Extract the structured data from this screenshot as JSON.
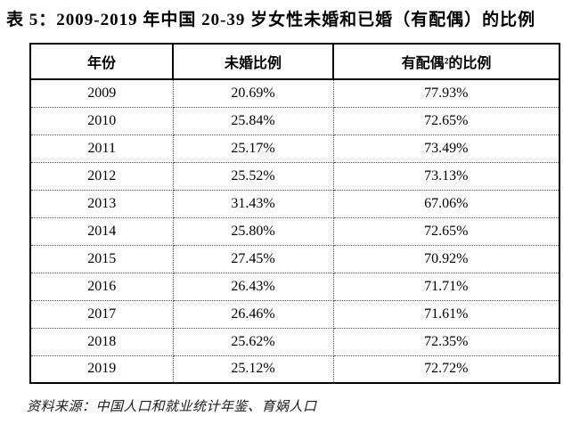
{
  "title": "表 5：2009-2019 年中国 20-39 岁女性未婚和已婚（有配偶）的比例",
  "source_note": "资料来源：中国人口和就业统计年鉴、育娲人口",
  "colors": {
    "background": "#ffffff",
    "text": "#000000",
    "border_solid": "#000000",
    "border_dotted": "#555555"
  },
  "chart_data": {
    "type": "table",
    "title": "表 5：2009-2019 年中国 20-39 岁女性未婚和已婚（有配偶）的比例",
    "columns": [
      "年份",
      "未婚比例",
      "有配偶²的比例"
    ],
    "rows": [
      [
        "2009",
        "20.69%",
        "77.93%"
      ],
      [
        "2010",
        "25.84%",
        "72.65%"
      ],
      [
        "2011",
        "25.17%",
        "73.49%"
      ],
      [
        "2012",
        "25.52%",
        "73.13%"
      ],
      [
        "2013",
        "31.43%",
        "67.06%"
      ],
      [
        "2014",
        "25.80%",
        "72.65%"
      ],
      [
        "2015",
        "27.45%",
        "70.92%"
      ],
      [
        "2016",
        "26.43%",
        "71.71%"
      ],
      [
        "2017",
        "26.46%",
        "71.61%"
      ],
      [
        "2018",
        "25.62%",
        "72.35%"
      ],
      [
        "2019",
        "25.12%",
        "72.72%"
      ]
    ],
    "categories": [
      "2009",
      "2010",
      "2011",
      "2012",
      "2013",
      "2014",
      "2015",
      "2016",
      "2017",
      "2018",
      "2019"
    ],
    "series": [
      {
        "name": "未婚比例",
        "values": [
          20.69,
          25.84,
          25.17,
          25.52,
          31.43,
          25.8,
          27.45,
          26.43,
          26.46,
          25.62,
          25.12
        ]
      },
      {
        "name": "有配偶的比例",
        "values": [
          77.93,
          72.65,
          73.49,
          73.13,
          67.06,
          72.65,
          70.92,
          71.71,
          71.61,
          72.35,
          72.72
        ]
      }
    ],
    "source": "资料来源：中国人口和就业统计年鉴、育娲人口"
  }
}
